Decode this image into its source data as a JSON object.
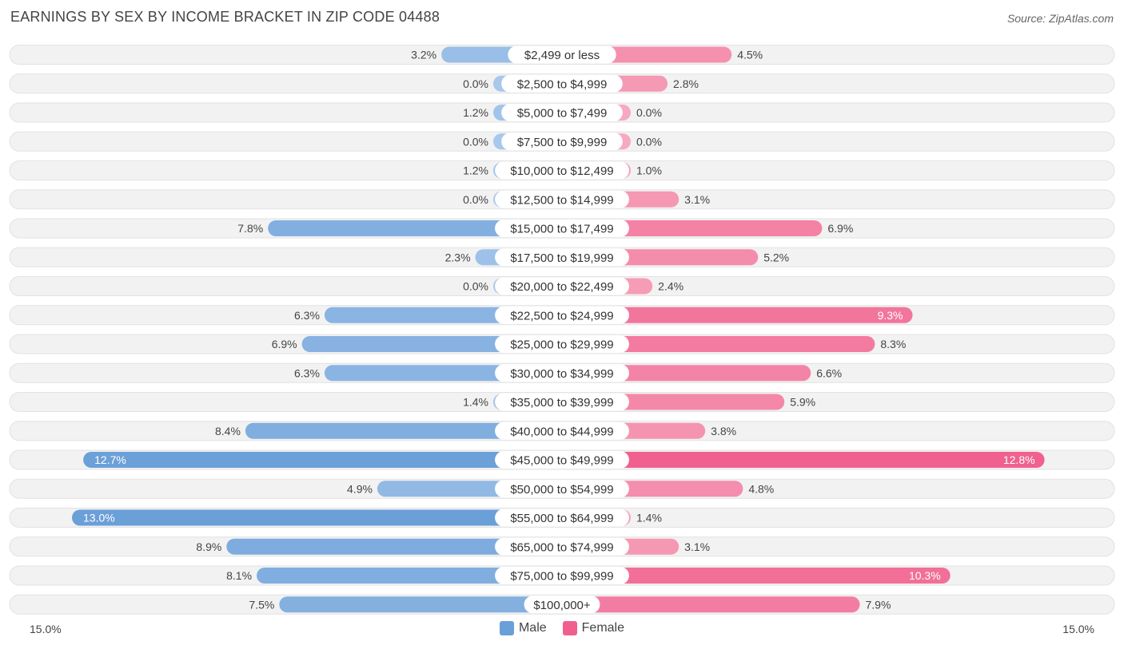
{
  "header": {
    "title": "EARNINGS BY SEX BY INCOME BRACKET IN ZIP CODE 04488",
    "source": "Source: ZipAtlas.com"
  },
  "axis": {
    "left_label": "15.0%",
    "right_label": "15.0%"
  },
  "legend": {
    "male_label": "Male",
    "female_label": "Female"
  },
  "colors": {
    "male": "#6a9fd8",
    "male_light": "#a8c8ec",
    "female": "#f0608e",
    "female_light": "#f7a9c0",
    "row_bg": "#f2f2f2"
  },
  "chart_data": {
    "type": "bar",
    "orientation": "horizontal-diverging",
    "title": "EARNINGS BY SEX BY INCOME BRACKET IN ZIP CODE 04488",
    "xlim": [
      -15.0,
      15.0
    ],
    "unit": "%",
    "categories": [
      "$2,499 or less",
      "$2,500 to $4,999",
      "$5,000 to $7,499",
      "$7,500 to $9,999",
      "$10,000 to $12,499",
      "$12,500 to $14,999",
      "$15,000 to $17,499",
      "$17,500 to $19,999",
      "$20,000 to $22,499",
      "$22,500 to $24,999",
      "$25,000 to $29,999",
      "$30,000 to $34,999",
      "$35,000 to $39,999",
      "$40,000 to $44,999",
      "$45,000 to $49,999",
      "$50,000 to $54,999",
      "$55,000 to $64,999",
      "$65,000 to $74,999",
      "$75,000 to $99,999",
      "$100,000+"
    ],
    "series": [
      {
        "name": "Male",
        "values": [
          3.2,
          0.0,
          1.2,
          0.0,
          1.2,
          0.0,
          7.8,
          2.3,
          0.0,
          6.3,
          6.9,
          6.3,
          1.4,
          8.4,
          12.7,
          4.9,
          13.0,
          8.9,
          8.1,
          7.5
        ],
        "labels": [
          "3.2%",
          "0.0%",
          "1.2%",
          "0.0%",
          "1.2%",
          "0.0%",
          "7.8%",
          "2.3%",
          "0.0%",
          "6.3%",
          "6.9%",
          "6.3%",
          "1.4%",
          "8.4%",
          "12.7%",
          "4.9%",
          "13.0%",
          "8.9%",
          "8.1%",
          "7.5%"
        ]
      },
      {
        "name": "Female",
        "values": [
          4.5,
          2.8,
          0.0,
          0.0,
          1.0,
          3.1,
          6.9,
          5.2,
          2.4,
          9.3,
          8.3,
          6.6,
          5.9,
          3.8,
          12.8,
          4.8,
          1.4,
          3.1,
          10.3,
          7.9
        ],
        "labels": [
          "4.5%",
          "2.8%",
          "0.0%",
          "0.0%",
          "1.0%",
          "3.1%",
          "6.9%",
          "5.2%",
          "2.4%",
          "9.3%",
          "8.3%",
          "6.6%",
          "5.9%",
          "3.8%",
          "12.8%",
          "4.8%",
          "1.4%",
          "3.1%",
          "10.3%",
          "7.9%"
        ]
      }
    ]
  }
}
